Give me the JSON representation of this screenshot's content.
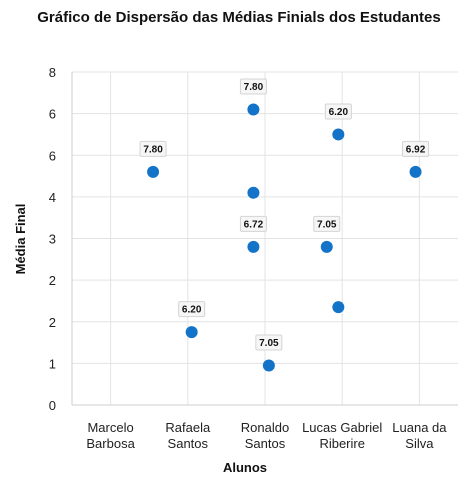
{
  "chart_data": {
    "type": "scatter",
    "title": "Gráfico de Dispersão das Médias Finials dos Estudantes",
    "xlabel": "Alunos",
    "ylabel": "Média Final",
    "categories": [
      "Marcelo\nBarbosa",
      "Rafaela\nSantos",
      "Ronaldo\nSantos",
      "Lucas Gabriel\nRiberire",
      "Luana da\nSilva"
    ],
    "y_ticks": [
      "0",
      "1",
      "2",
      "2",
      "3",
      "4",
      "6",
      "6",
      "8"
    ],
    "ylim": [
      0,
      8
    ],
    "grid": true,
    "points": [
      {
        "x": 1.55,
        "y": 5.6,
        "label": "7.80"
      },
      {
        "x": 2.05,
        "y": 1.75,
        "label": "6.20"
      },
      {
        "x": 2.85,
        "y": 7.1,
        "label": "7.80"
      },
      {
        "x": 2.85,
        "y": 5.1,
        "label": ""
      },
      {
        "x": 2.85,
        "y": 3.8,
        "label": "6.72"
      },
      {
        "x": 3.05,
        "y": 0.95,
        "label": "7.05"
      },
      {
        "x": 3.8,
        "y": 3.8,
        "label": "7.05"
      },
      {
        "x": 3.95,
        "y": 6.5,
        "label": "6.20"
      },
      {
        "x": 3.95,
        "y": 2.35,
        "label": ""
      },
      {
        "x": 4.95,
        "y": 5.6,
        "label": "6.92"
      }
    ],
    "colors": {
      "point": "#1273c9"
    }
  }
}
